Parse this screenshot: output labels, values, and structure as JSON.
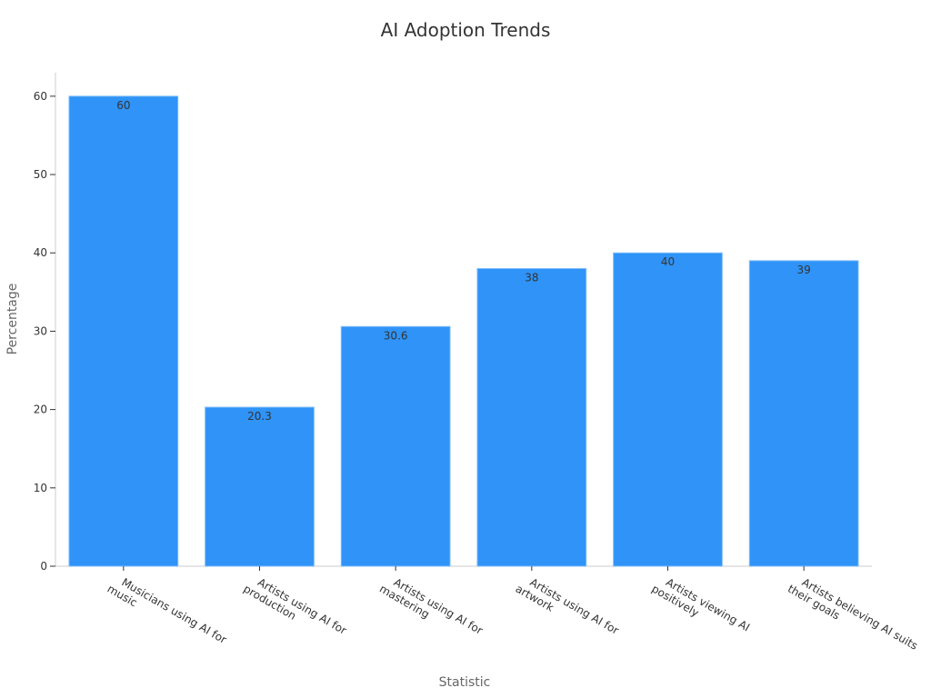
{
  "chart_data": {
    "type": "bar",
    "title": "AI Adoption Trends",
    "x_label": "Statistic",
    "y_label": "Percentage",
    "categories": [
      "Musicians using AI for music",
      "Artists using AI for production",
      "Artists using AI for mastering",
      "Artists using AI for artwork",
      "Artists viewing AI positively",
      "Artists believing AI suits their goals"
    ],
    "values": [
      60,
      20.3,
      30.6,
      38,
      40,
      39
    ],
    "color": "#2f93f7",
    "ylim": [
      0,
      63
    ],
    "yticks": [
      0,
      10,
      20,
      30,
      40,
      50,
      60
    ],
    "grid": false
  }
}
